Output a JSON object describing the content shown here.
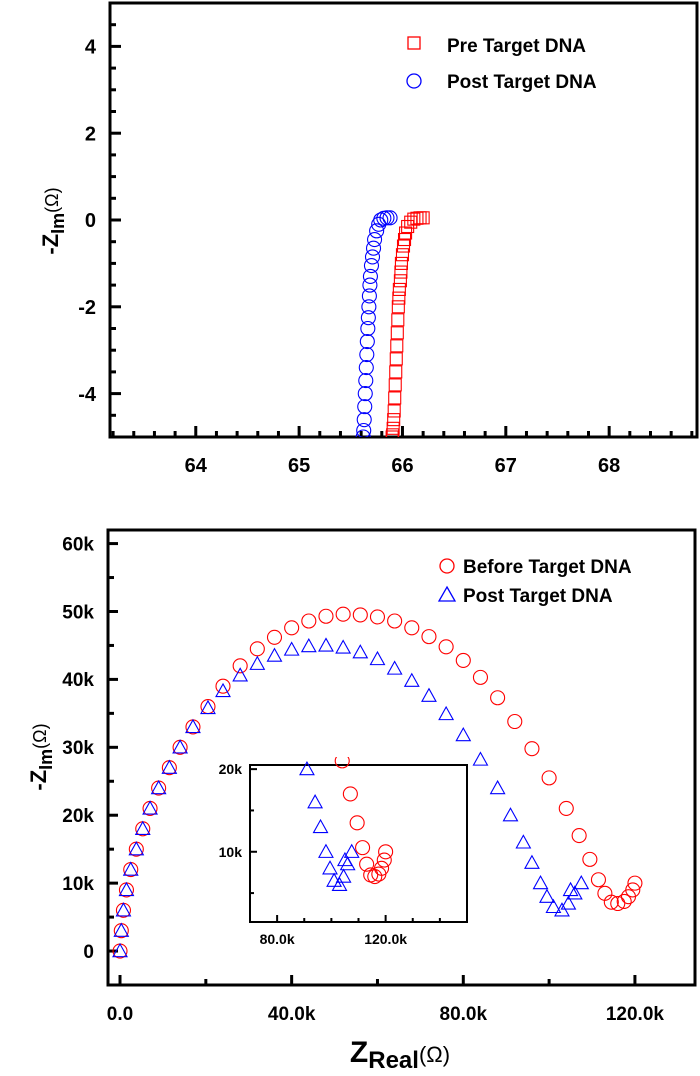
{
  "colors": {
    "red": "#ff0000",
    "blue": "#0000ff",
    "axis": "#000000"
  },
  "chart_data": [
    {
      "type": "scatter",
      "title": "",
      "xlim": [
        63.17,
        68.85
      ],
      "ylim": [
        -5,
        5
      ],
      "xticks": [
        64,
        65,
        66,
        67,
        68
      ],
      "xtick_labels": [
        "64",
        "65",
        "66",
        "67",
        "68"
      ],
      "yticks": [
        4,
        2,
        0,
        -2,
        -4
      ],
      "ytick_labels": [
        "4",
        "2",
        "0",
        "-2",
        "-4"
      ],
      "xminor": 0.2,
      "yminor": 0.5,
      "ylabel": {
        "main": "-Z",
        "sub": "Im",
        "unit": "(Ω)"
      },
      "legend_position": "top-right",
      "series": [
        {
          "name": "Pre Target DNA",
          "marker": "square",
          "color": "#ff0000",
          "x": [
            66.2,
            66.17,
            66.14,
            66.11,
            66.08,
            66.05,
            66.03,
            66.02,
            66.01,
            66.0,
            65.99,
            65.985,
            65.98,
            65.97,
            65.965,
            65.96,
            65.955,
            65.95,
            65.945,
            65.94,
            65.935,
            65.93,
            65.925,
            65.92,
            65.915,
            65.91,
            65.905,
            65.9
          ],
          "y": [
            0.05,
            0.05,
            0.04,
            0.02,
            -0.05,
            -0.15,
            -0.3,
            -0.45,
            -0.6,
            -0.8,
            -1.0,
            -1.2,
            -1.4,
            -1.6,
            -1.8,
            -2.0,
            -2.3,
            -2.6,
            -2.9,
            -3.2,
            -3.5,
            -3.8,
            -4.1,
            -4.4,
            -4.6,
            -4.8,
            -4.95,
            -5.0
          ]
        },
        {
          "name": "Post Target DNA",
          "marker": "circle",
          "color": "#0000ff",
          "x": [
            65.88,
            65.85,
            65.82,
            65.79,
            65.77,
            65.75,
            65.73,
            65.72,
            65.71,
            65.7,
            65.69,
            65.685,
            65.68,
            65.675,
            65.67,
            65.665,
            65.66,
            65.655,
            65.65,
            65.645,
            65.64,
            65.635,
            65.63,
            65.625,
            65.62
          ],
          "y": [
            0.05,
            0.05,
            0.04,
            0.0,
            -0.1,
            -0.25,
            -0.45,
            -0.65,
            -0.85,
            -1.05,
            -1.3,
            -1.5,
            -1.75,
            -2.0,
            -2.25,
            -2.5,
            -2.8,
            -3.1,
            -3.4,
            -3.7,
            -4.0,
            -4.3,
            -4.6,
            -4.85,
            -5.0
          ]
        }
      ]
    },
    {
      "type": "scatter",
      "title": "",
      "xlim": [
        -2.8,
        134
      ],
      "ylim": [
        -5,
        62
      ],
      "xticks": [
        0,
        40,
        80,
        120
      ],
      "xtick_labels": [
        "0.0",
        "40.0k",
        "80.0k",
        "120.0k"
      ],
      "yticks": [
        0,
        10,
        20,
        30,
        40,
        50,
        60
      ],
      "ytick_labels": [
        "0",
        "10k",
        "20k",
        "30k",
        "40k",
        "50k",
        "60k"
      ],
      "xminor": 20,
      "yminor": 5,
      "xlabel": {
        "main": "Z",
        "sub": "Real",
        "unit": "(Ω)"
      },
      "ylabel": {
        "main": "-Z",
        "sub": "Im",
        "unit": "(Ω)"
      },
      "units": "x and y in kΩ",
      "legend_position": "top-right",
      "series": [
        {
          "name": "Before Target DNA",
          "marker": "circle",
          "color": "#ff0000",
          "x": [
            0,
            0.3,
            0.8,
            1.5,
            2.5,
            3.8,
            5.3,
            7,
            9,
            11.5,
            14,
            17,
            20.5,
            24,
            28,
            32,
            36,
            40,
            44,
            48,
            52,
            56,
            60,
            64,
            68,
            72,
            76,
            80,
            84,
            88,
            92,
            96,
            100,
            104,
            107,
            109.5,
            111.5,
            113,
            114.5,
            116,
            117.5,
            118.5,
            119.5,
            120
          ],
          "y": [
            0,
            3,
            6,
            9,
            12,
            15,
            18,
            21,
            24,
            27,
            30,
            33,
            36,
            39,
            42,
            44.5,
            46.2,
            47.6,
            48.6,
            49.3,
            49.6,
            49.5,
            49.2,
            48.6,
            47.6,
            46.3,
            44.8,
            42.8,
            40.3,
            37.3,
            33.8,
            29.8,
            25.5,
            21,
            17,
            13.5,
            10.5,
            8.5,
            7.2,
            7,
            7.3,
            8,
            9,
            10
          ]
        },
        {
          "name": "Post Target DNA",
          "marker": "triangle",
          "color": "#0000ff",
          "x": [
            0,
            0.3,
            0.8,
            1.5,
            2.5,
            3.8,
            5.3,
            7,
            9,
            11.5,
            14,
            17,
            20.5,
            24,
            28,
            32,
            36,
            40,
            44,
            48,
            52,
            56,
            60,
            64,
            68,
            72,
            76,
            80,
            84,
            88,
            91,
            94,
            96,
            98,
            99.5,
            101,
            103,
            104.5,
            106,
            107.5,
            105
          ],
          "y": [
            0,
            3,
            6,
            9,
            12,
            15,
            18,
            21,
            24,
            27,
            30,
            33,
            35.8,
            38.3,
            40.6,
            42.3,
            43.5,
            44.4,
            44.9,
            45,
            44.7,
            44,
            43,
            41.6,
            39.8,
            37.6,
            34.9,
            31.8,
            28.2,
            24,
            20,
            16,
            13,
            10,
            8,
            6.5,
            6,
            7,
            8.5,
            10,
            9
          ]
        }
      ],
      "inset": {
        "xlim": [
          70,
          150
        ],
        "ylim": [
          1.5,
          20.5
        ],
        "xticks": [
          80,
          120
        ],
        "xtick_labels": [
          "80.0k",
          "120.0k"
        ],
        "yticks": [
          10,
          20
        ],
        "ytick_labels": [
          "10k",
          "20k"
        ],
        "xminor": 10,
        "yminor": 5
      }
    }
  ]
}
